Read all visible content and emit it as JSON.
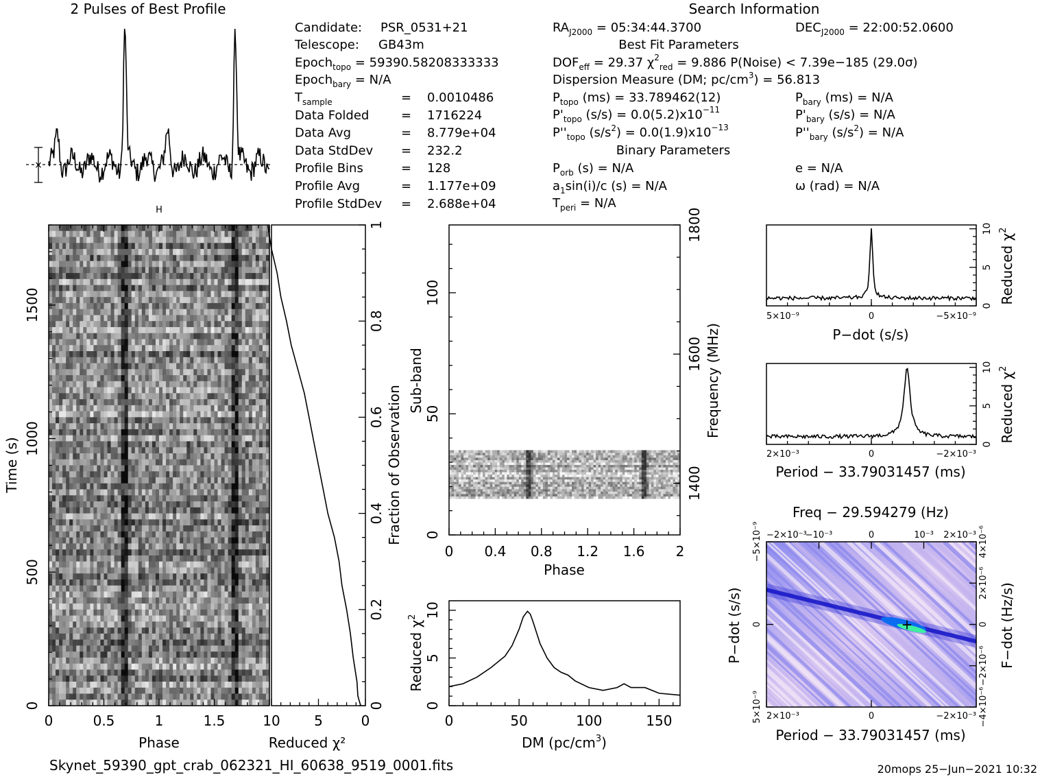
{
  "top_title": "2 Pulses of Best Profile",
  "search_title": "Search Information",
  "header_info": {
    "candidate_label": "Candidate:",
    "candidate": "PSR_0531+21",
    "telescope_label": "Telescope:",
    "telescope": "GB43m",
    "epoch_topo": "59390.58208333333",
    "epoch_bary": "N/A",
    "rows": [
      {
        "label": "T",
        "sub": "sample",
        "value": "0.0010486"
      },
      {
        "label": "Data Folded",
        "value": "1716224"
      },
      {
        "label": "Data Avg",
        "value": "8.779e+04"
      },
      {
        "label": "Data StdDev",
        "value": "232.2"
      },
      {
        "label": "Profile Bins",
        "value": "128"
      },
      {
        "label": "Profile Avg",
        "value": "1.177e+09"
      },
      {
        "label": "Profile StdDev",
        "value": "2.688e+04"
      }
    ]
  },
  "fit_info": {
    "ra": "05:34:44.3700",
    "dec": "22:00:52.0600",
    "best_fit_title": "Best Fit Parameters",
    "dof_eff": "29.37",
    "chi2_red": "9.886",
    "p_noise": "< 7.39e−185",
    "sigma": "(29.0σ)",
    "dm_label": "Dispersion Measure (DM; pc/cm",
    "dm": "56.813",
    "p_topo": "33.789462(12)",
    "p_bary": "N/A",
    "pd_topo": "0.0(5.2)x10",
    "pd_topo_exp": "−11",
    "pd_bary": "N/A",
    "pdd_topo": "0.0(1.9)x10",
    "pdd_topo_exp": "−13",
    "pdd_bary": "N/A",
    "binary_title": "Binary Parameters",
    "p_orb": "N/A",
    "e": "N/A",
    "a1sini": "N/A",
    "omega": "N/A",
    "t_peri": "N/A"
  },
  "footer": {
    "filename": "Skynet_59390_gpt_crab_062321_HI_60638_9519_0001.fits",
    "stamp": "20mops 25−Jun−2021 10:32"
  },
  "colors": {
    "axis": "#000000",
    "ppdot_low": "#f1e4f5",
    "ppdot_mid": "#5a5ae6",
    "ppdot_high": "#3cf0a0"
  },
  "chart_data": [
    {
      "id": "pulse_profile",
      "type": "line",
      "title": "2 Pulses of Best Profile",
      "x_range": [
        0,
        2
      ],
      "peaks_phase": [
        0.69,
        1.69
      ],
      "secondary_peaks_phase": [
        0.08,
        1.08
      ],
      "profile_avg": 1177000000.0,
      "profile_stddev": 26880.0
    },
    {
      "id": "time_phase",
      "type": "heatmap",
      "xlabel": "Phase",
      "ylabel": "Time (s)",
      "xlim": [
        0,
        2
      ],
      "ylim": [
        0,
        1800
      ],
      "x_ticks": [
        0,
        0.5,
        1,
        1.5
      ],
      "y_ticks": [
        0,
        500,
        1000,
        1500
      ],
      "pulse_phases": [
        0.69,
        1.69
      ]
    },
    {
      "id": "time_chi2",
      "type": "line",
      "xlabel": "Reduced χ²",
      "ylabel_right": "Fraction of Observation",
      "xlim": [
        10,
        0
      ],
      "ylim": [
        0,
        1
      ],
      "x_ticks": [
        10,
        5,
        0
      ],
      "y_ticks": [
        0,
        0.2,
        0.4,
        0.6,
        0.8,
        1
      ],
      "fraction": [
        0.0,
        0.02,
        0.05,
        0.1,
        0.15,
        0.2,
        0.25,
        0.3,
        0.35,
        0.4,
        0.45,
        0.5,
        0.55,
        0.6,
        0.65,
        0.7,
        0.75,
        0.8,
        0.85,
        0.9,
        0.95,
        1.0
      ],
      "chi2": [
        0.5,
        0.8,
        0.9,
        1.3,
        1.6,
        2.0,
        2.5,
        2.8,
        3.3,
        4.0,
        4.5,
        5.0,
        5.5,
        6.0,
        6.5,
        7.2,
        7.9,
        8.4,
        9.0,
        9.4,
        10.0,
        10.4
      ]
    },
    {
      "id": "subband_phase",
      "type": "heatmap",
      "xlabel": "Phase",
      "ylabel": "Sub-band",
      "ylabel_right": "Frequency (MHz)",
      "xlim": [
        0,
        2
      ],
      "ylim": [
        0,
        128
      ],
      "signal_subbands": [
        15,
        35
      ],
      "x_ticks": [
        0,
        0.4,
        0.8,
        1.2,
        1.6,
        2
      ],
      "y_ticks": [
        0,
        50,
        100
      ],
      "freq_ticks": [
        1400,
        1600,
        1800
      ],
      "freq_range": [
        1320,
        1800
      ],
      "pulse_phases": [
        0.69,
        1.69
      ]
    },
    {
      "id": "dm_chi2",
      "type": "line",
      "xlabel": "DM (pc/cm³)",
      "ylabel": "Reduced χ²",
      "xlim": [
        0,
        165
      ],
      "ylim": [
        0,
        11
      ],
      "x_ticks": [
        0,
        50,
        100,
        150
      ],
      "y_ticks": [
        0,
        5,
        10
      ],
      "x": [
        0,
        10,
        20,
        30,
        40,
        45,
        50,
        53,
        56,
        58,
        60,
        65,
        70,
        75,
        80,
        85,
        90,
        100,
        110,
        120,
        125,
        130,
        140,
        150,
        165
      ],
      "y": [
        2.0,
        2.3,
        3.0,
        4.0,
        5.2,
        6.3,
        8.0,
        9.3,
        9.9,
        9.6,
        8.8,
        6.5,
        5.0,
        4.0,
        3.5,
        3.2,
        2.6,
        1.9,
        1.6,
        1.9,
        2.3,
        1.9,
        1.9,
        1.3,
        1.1
      ]
    },
    {
      "id": "pdot_chi2",
      "type": "line",
      "xlabel": "P−dot (s/s)",
      "ylabel_right": "Reduced χ²",
      "xlim": [
        5e-09,
        -5e-09
      ],
      "ylim": [
        0,
        10.5
      ],
      "x_ticks": [
        "5×10⁻⁹",
        "0",
        "−5×10⁻⁹"
      ],
      "y_ticks": [
        0,
        5,
        10
      ],
      "peak_x": 0,
      "peak_y": 9.886,
      "baseline": 1.0
    },
    {
      "id": "period_chi2",
      "type": "line",
      "xlabel": "Period − 33.79031457 (ms)",
      "ylabel_right": "Reduced χ²",
      "xlim": [
        0.0025,
        -0.0025
      ],
      "ylim": [
        0,
        10.5
      ],
      "x_ticks": [
        "2×10⁻³",
        "0",
        "−2×10⁻³"
      ],
      "y_ticks": [
        0,
        5,
        10
      ],
      "peak_x": -0.00085,
      "peak_y": 9.886,
      "baseline": 1.0
    },
    {
      "id": "p_pdot",
      "type": "heatmap",
      "title": "Freq − 29.594279 (Hz)",
      "xlabel": "Period − 33.79031457 (ms)",
      "ylabel": "P−dot (s/s)",
      "ylabel_right": "F−dot (Hz/s)",
      "bottom_ticks": [
        "2×10⁻³",
        "0",
        "−2×10⁻³"
      ],
      "top_ticks": [
        "−2×10⁻³",
        "−10⁻³",
        "0",
        "10⁻³",
        "2×10⁻³"
      ],
      "left_ticks": [
        "−5×10⁻⁹",
        "0",
        "5×10⁻⁹"
      ],
      "right_ticks": [
        "4×10⁻⁶",
        "2×10⁻⁶",
        "0",
        "−2×10⁻⁶",
        "−4×10⁻⁶"
      ],
      "best_x": -0.00085,
      "best_y": 0
    }
  ]
}
